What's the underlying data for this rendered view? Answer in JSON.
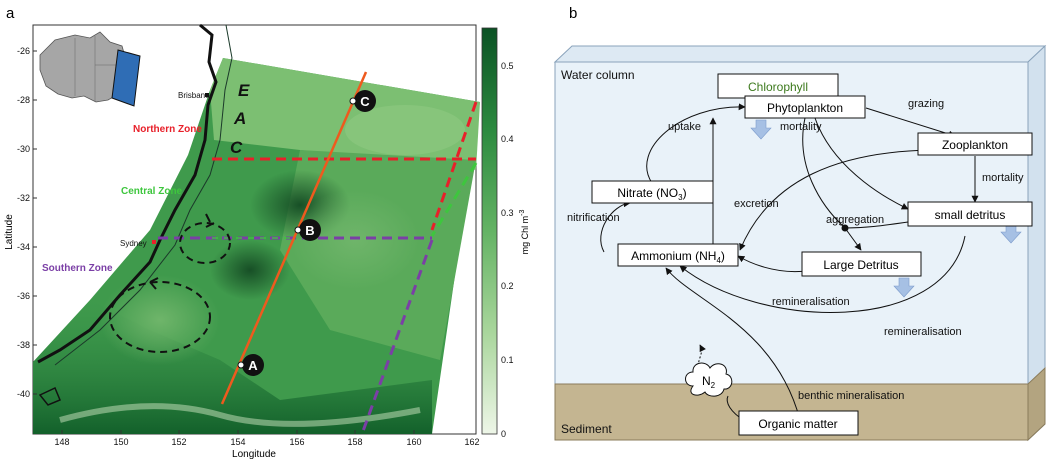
{
  "panel_a": {
    "panel_label": "a",
    "x_axis_label": "Longitude",
    "y_axis_label": "Latitude",
    "x_ticks": [
      "148",
      "150",
      "152",
      "154",
      "156",
      "158",
      "160",
      "162"
    ],
    "y_ticks": [
      "-26",
      "-28",
      "-30",
      "-32",
      "-34",
      "-36",
      "-38",
      "-40"
    ],
    "colorbar": {
      "label": "mg Chl m",
      "label_superscript": "-3",
      "ticks": [
        "0.5",
        "0.4",
        "0.3",
        "0.2",
        "0.1",
        "0"
      ]
    },
    "zones": {
      "northern": "Northern Zone",
      "central": "Central Zone",
      "southern": "Southern Zone"
    },
    "cities": {
      "brisbane": "Brisbane",
      "sydney": "Sydney"
    },
    "eac_letters": [
      "E",
      "A",
      "C"
    ],
    "stations": {
      "a": "A",
      "b": "B",
      "c": "C"
    },
    "colors": {
      "northern_line": "#e8202a",
      "central_line": "#3ec63e",
      "southern_line": "#7b3fa6",
      "transect": "#ee5a1e",
      "chl_high": "#0d5a26",
      "chl_low": "#e8f3df"
    }
  },
  "panel_b": {
    "panel_label": "b",
    "water_column": "Water column",
    "sediment": "Sediment",
    "boxes": {
      "chlorophyll": "Chlorophyll",
      "phytoplankton": "Phytoplankton",
      "zooplankton": "Zooplankton",
      "nitrate": "Nitrate (NO",
      "nitrate_sub": "3",
      "ammonium": "Ammonium (NH",
      "ammonium_sub": "4",
      "small_detritus": "small detritus",
      "large_detritus": "Large Detritus",
      "organic_matter": "Organic matter"
    },
    "n2": {
      "main": "N",
      "sub": "2"
    },
    "labels": {
      "grazing": "grazing",
      "uptake": "uptake",
      "mortality_phyto": "mortality",
      "mortality_zoo": "mortality",
      "excretion": "excretion",
      "nitrification": "nitrification",
      "aggregation": "aggregation",
      "remineralisation_1": "remineralisation",
      "remineralisation_2": "remineralisation",
      "benthic": "benthic mineralisation"
    },
    "colors": {
      "water": "#e9f2f9",
      "sediment": "#c4b591",
      "sink_arrow": "#a6c0e4",
      "chlorophyll_text": "#3d7a1e"
    }
  }
}
